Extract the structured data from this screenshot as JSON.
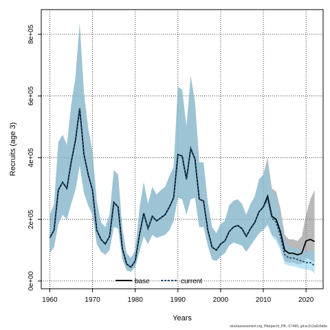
{
  "chart_data": {
    "type": "line",
    "title": "",
    "xlabel": "Years",
    "ylabel": "Recruits (age 3)",
    "xlim": [
      1958,
      2024
    ],
    "ylim": [
      -25000,
      880000
    ],
    "x_ticks": [
      1960,
      1970,
      1980,
      1990,
      2000,
      2010,
      2020
    ],
    "x_tick_labels": [
      "1960",
      "1970",
      "1980",
      "1990",
      "2000",
      "2010",
      "2020"
    ],
    "y_ticks": [
      0,
      200000,
      400000,
      600000,
      800000
    ],
    "y_tick_labels": [
      "0e+00",
      "2e+05",
      "4e+05",
      "6e+05",
      "8e+05"
    ],
    "grid": true,
    "legend_position": "bottom",
    "footnote": "stockassessment.org, Pikeperch_PB, r17469, git:ec2c2a0c6dde",
    "colors": {
      "base_line": "#000000",
      "base_band": "#808080",
      "current_line": "#1f4e79",
      "current_band": "#87ceeb"
    },
    "series": [
      {
        "name": "base",
        "style": "solid",
        "x": [
          1960,
          1961,
          1962,
          1963,
          1964,
          1965,
          1966,
          1967,
          1968,
          1969,
          1970,
          1971,
          1972,
          1973,
          1974,
          1975,
          1976,
          1977,
          1978,
          1979,
          1980,
          1981,
          1982,
          1983,
          1984,
          1985,
          1986,
          1987,
          1988,
          1989,
          1990,
          1991,
          1992,
          1993,
          1994,
          1995,
          1996,
          1997,
          1998,
          1999,
          2000,
          2001,
          2002,
          2003,
          2004,
          2005,
          2006,
          2007,
          2008,
          2009,
          2010,
          2011,
          2012,
          2013,
          2014,
          2015,
          2016,
          2017,
          2018,
          2019,
          2020,
          2021,
          2022
        ],
        "y": [
          140000,
          165000,
          295000,
          320000,
          300000,
          385000,
          455000,
          560000,
          410000,
          345000,
          295000,
          165000,
          135000,
          120000,
          145000,
          255000,
          240000,
          105000,
          55000,
          45000,
          65000,
          150000,
          220000,
          170000,
          210000,
          195000,
          205000,
          215000,
          240000,
          270000,
          410000,
          405000,
          330000,
          430000,
          395000,
          265000,
          260000,
          165000,
          110000,
          100000,
          120000,
          130000,
          160000,
          175000,
          180000,
          170000,
          145000,
          170000,
          190000,
          225000,
          240000,
          275000,
          210000,
          200000,
          160000,
          100000,
          90000,
          90000,
          85000,
          90000,
          130000,
          135000,
          128000
        ],
        "lower": [
          90000,
          110000,
          185000,
          215000,
          200000,
          250000,
          295000,
          375000,
          285000,
          245000,
          215000,
          120000,
          95000,
          85000,
          100000,
          175000,
          170000,
          70000,
          35000,
          30000,
          45000,
          95000,
          145000,
          120000,
          150000,
          140000,
          145000,
          150000,
          165000,
          195000,
          270000,
          265000,
          215000,
          265000,
          270000,
          175000,
          175000,
          115000,
          70000,
          65000,
          80000,
          90000,
          115000,
          125000,
          120000,
          115000,
          95000,
          115000,
          135000,
          155000,
          165000,
          185000,
          150000,
          140000,
          110000,
          65000,
          60000,
          60000,
          55000,
          55000,
          75000,
          70000,
          60000
        ],
        "upper": [
          215000,
          250000,
          450000,
          475000,
          440000,
          570000,
          660000,
          835000,
          610000,
          495000,
          420000,
          260000,
          190000,
          175000,
          215000,
          360000,
          345000,
          170000,
          90000,
          75000,
          100000,
          235000,
          320000,
          250000,
          305000,
          280000,
          295000,
          305000,
          340000,
          370000,
          630000,
          620000,
          500000,
          665000,
          580000,
          385000,
          385000,
          255000,
          175000,
          155000,
          185000,
          195000,
          245000,
          260000,
          265000,
          250000,
          215000,
          250000,
          275000,
          330000,
          345000,
          400000,
          300000,
          290000,
          235000,
          150000,
          135000,
          135000,
          130000,
          145000,
          215000,
          265000,
          295000
        ]
      },
      {
        "name": "current",
        "style": "dashed",
        "x": [
          1960,
          1961,
          1962,
          1963,
          1964,
          1965,
          1966,
          1967,
          1968,
          1969,
          1970,
          1971,
          1972,
          1973,
          1974,
          1975,
          1976,
          1977,
          1978,
          1979,
          1980,
          1981,
          1982,
          1983,
          1984,
          1985,
          1986,
          1987,
          1988,
          1989,
          1990,
          1991,
          1992,
          1993,
          1994,
          1995,
          1996,
          1997,
          1998,
          1999,
          2000,
          2001,
          2002,
          2003,
          2004,
          2005,
          2006,
          2007,
          2008,
          2009,
          2010,
          2011,
          2012,
          2013,
          2014,
          2015,
          2016,
          2017,
          2018,
          2019,
          2020,
          2021,
          2022
        ],
        "y": [
          140000,
          165000,
          295000,
          320000,
          300000,
          385000,
          455000,
          560000,
          410000,
          345000,
          295000,
          165000,
          135000,
          120000,
          145000,
          255000,
          240000,
          105000,
          55000,
          45000,
          65000,
          150000,
          220000,
          170000,
          210000,
          195000,
          205000,
          215000,
          240000,
          270000,
          410000,
          405000,
          330000,
          430000,
          395000,
          265000,
          260000,
          165000,
          110000,
          100000,
          120000,
          130000,
          160000,
          175000,
          180000,
          170000,
          145000,
          170000,
          190000,
          225000,
          240000,
          265000,
          205000,
          190000,
          145000,
          85000,
          75000,
          75000,
          70000,
          65000,
          60000,
          60000,
          50000
        ],
        "lower": [
          90000,
          110000,
          185000,
          215000,
          200000,
          250000,
          295000,
          375000,
          285000,
          245000,
          215000,
          120000,
          95000,
          85000,
          100000,
          175000,
          170000,
          70000,
          35000,
          30000,
          45000,
          95000,
          145000,
          120000,
          150000,
          140000,
          145000,
          150000,
          165000,
          195000,
          270000,
          265000,
          215000,
          265000,
          270000,
          175000,
          175000,
          115000,
          70000,
          65000,
          80000,
          90000,
          115000,
          125000,
          120000,
          115000,
          95000,
          115000,
          135000,
          155000,
          165000,
          180000,
          145000,
          130000,
          100000,
          55000,
          50000,
          48000,
          45000,
          40000,
          38000,
          35000,
          25000
        ],
        "upper": [
          215000,
          250000,
          450000,
          475000,
          440000,
          570000,
          660000,
          835000,
          610000,
          495000,
          420000,
          260000,
          190000,
          175000,
          215000,
          360000,
          345000,
          170000,
          90000,
          75000,
          100000,
          235000,
          320000,
          250000,
          305000,
          280000,
          295000,
          305000,
          340000,
          370000,
          630000,
          620000,
          500000,
          665000,
          580000,
          385000,
          385000,
          255000,
          175000,
          155000,
          185000,
          195000,
          245000,
          260000,
          265000,
          250000,
          215000,
          250000,
          275000,
          330000,
          345000,
          385000,
          290000,
          275000,
          215000,
          130000,
          115000,
          110000,
          105000,
          100000,
          95000,
          100000,
          100000
        ]
      }
    ]
  }
}
